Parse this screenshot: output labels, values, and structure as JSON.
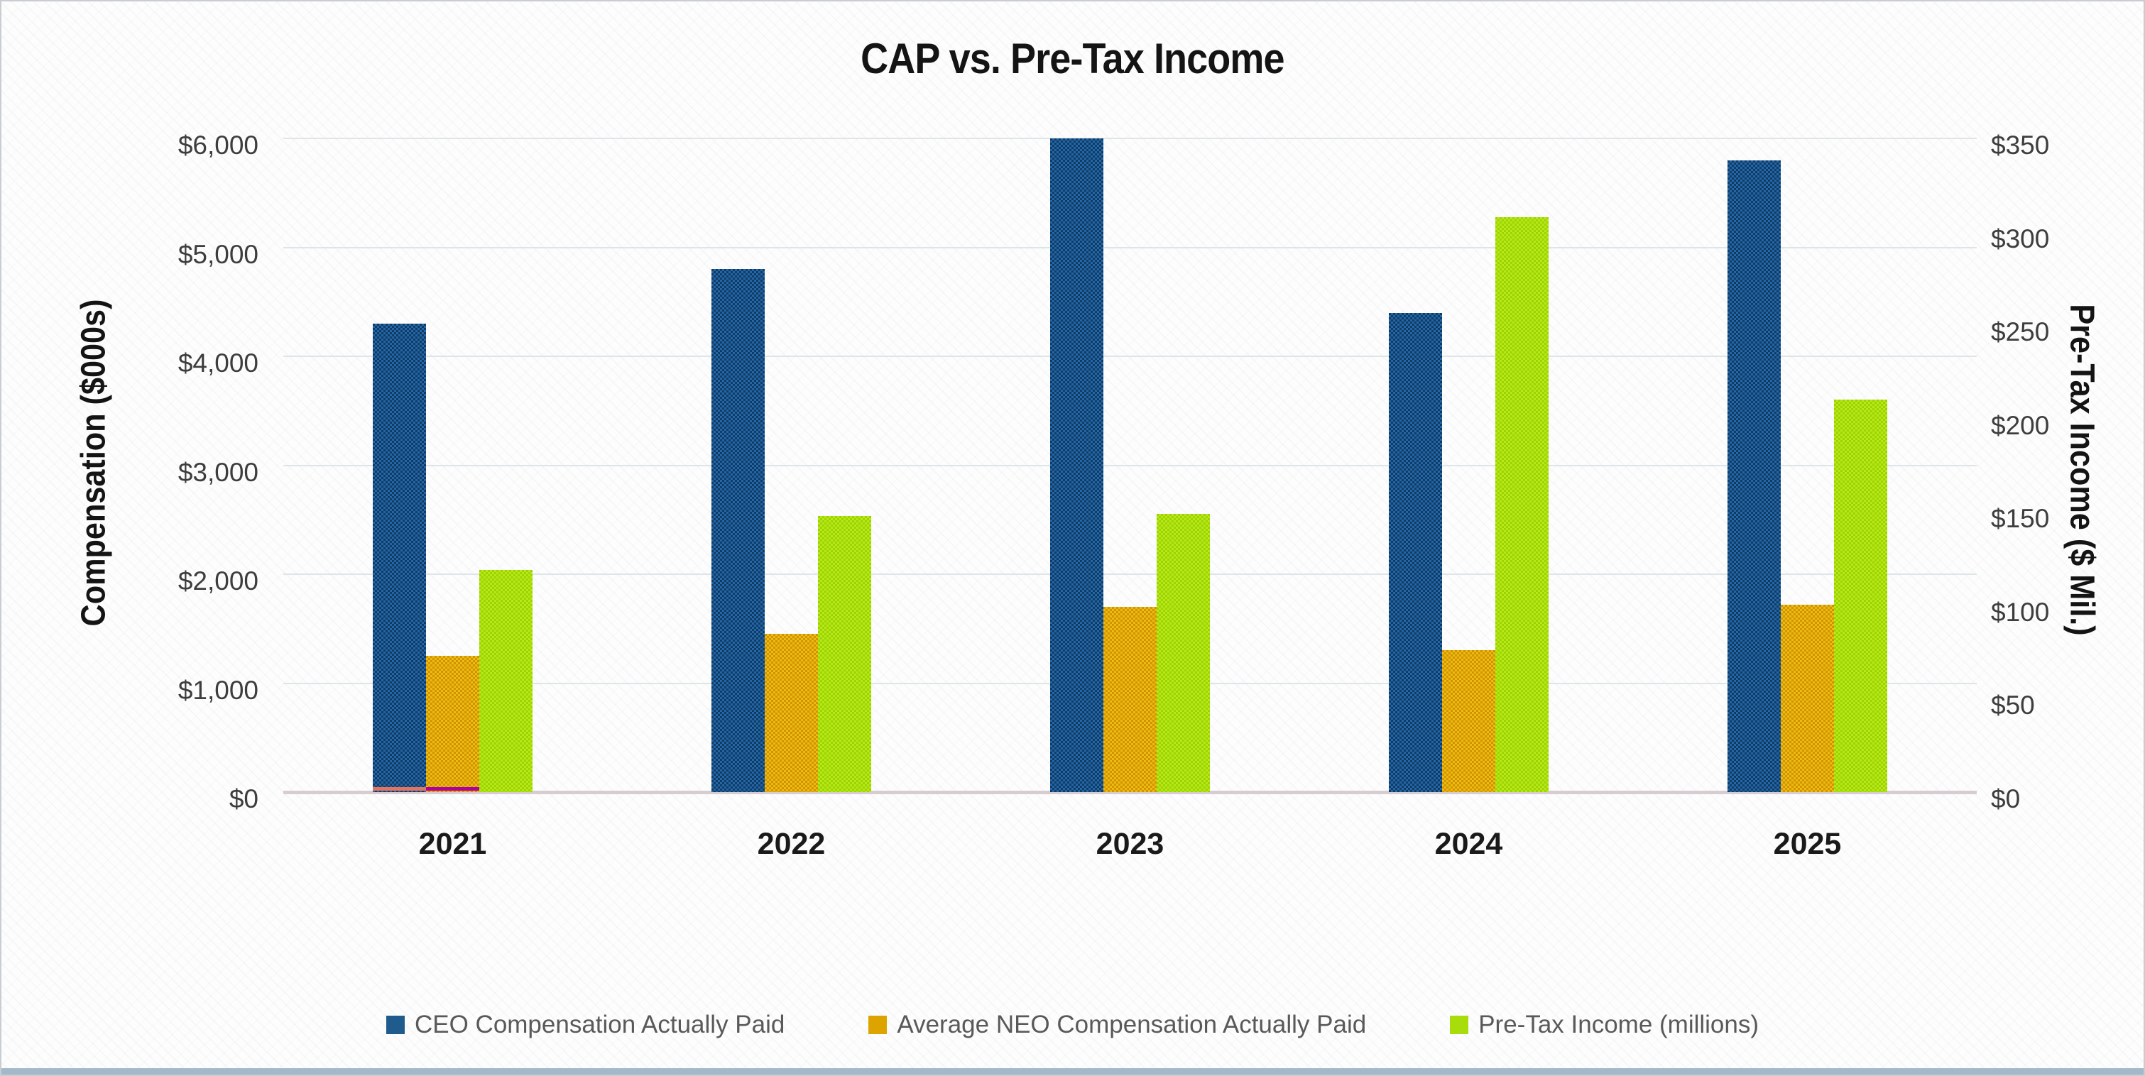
{
  "title": "CAP vs. Pre-Tax Income",
  "chart_data": {
    "type": "bar",
    "categories": [
      "2021",
      "2022",
      "2023",
      "2024",
      "2025"
    ],
    "series": [
      {
        "name": "CEO Compensation Actually Paid",
        "axis": "left",
        "legend_color": "#1f5c8d",
        "pattern_colors": [
          "#2167ac",
          "#133b60"
        ],
        "values": [
          4300,
          4800,
          6000,
          4400,
          5800
        ]
      },
      {
        "name": "Average NEO Compensation Actually Paid",
        "axis": "left",
        "legend_color": "#dda400",
        "pattern_colors": [
          "#e9bd13",
          "#d49200"
        ],
        "values": [
          1250,
          1450,
          1700,
          1300,
          1720
        ]
      },
      {
        "name": "Pre-Tax Income (millions)",
        "axis": "right",
        "legend_color": "#a8dc0a",
        "pattern_colors": [
          "#b8e81c",
          "#9cd400"
        ],
        "values": [
          119,
          148,
          149,
          308,
          210
        ]
      }
    ],
    "left_axis": {
      "title": "Compensation ($000s)",
      "min": 0,
      "max": 6000,
      "step": 1000,
      "tick_labels": [
        "$0",
        "$1,000",
        "$2,000",
        "$3,000",
        "$4,000",
        "$5,000",
        "$6,000"
      ]
    },
    "right_axis": {
      "title": "Pre-Tax Income ($ Mil.)",
      "min": 0,
      "max": 350,
      "step": 50,
      "tick_labels": [
        "$0",
        "$50",
        "$100",
        "$150",
        "$200",
        "$250",
        "$300",
        "$350"
      ]
    },
    "grid": "horizontal gridlines at left-axis steps",
    "legend_position": "bottom",
    "baseline_markers": [
      {
        "category": "2021",
        "under_series": 0,
        "color": "#e8735c"
      },
      {
        "category": "2021",
        "under_series": 1,
        "color": "#ae00a0"
      }
    ]
  }
}
